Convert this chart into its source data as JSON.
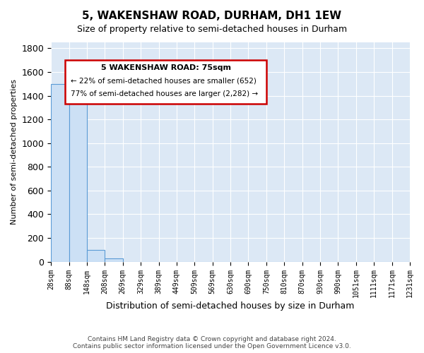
{
  "title": "5, WAKENSHAW ROAD, DURHAM, DH1 1EW",
  "subtitle": "Size of property relative to semi-detached houses in Durham",
  "xlabel": "Distribution of semi-detached houses by size in Durham",
  "ylabel": "Number of semi-detached properties",
  "bin_labels": [
    "28sqm",
    "88sqm",
    "148sqm",
    "208sqm",
    "269sqm",
    "329sqm",
    "389sqm",
    "449sqm",
    "509sqm",
    "569sqm",
    "630sqm",
    "690sqm",
    "750sqm",
    "810sqm",
    "870sqm",
    "930sqm",
    "990sqm",
    "1051sqm",
    "1111sqm",
    "1171sqm",
    "1231sqm"
  ],
  "bar_heights": [
    1500,
    1370,
    100,
    30,
    0,
    0,
    0,
    0,
    0,
    0,
    0,
    0,
    0,
    0,
    0,
    0,
    0,
    0,
    0,
    0
  ],
  "bar_color": "#cce0f5",
  "bar_edge_color": "#5b9bd5",
  "annotation_text_line1": "5 WAKENSHAW ROAD: 75sqm",
  "annotation_text_line2": "← 22% of semi-detached houses are smaller (652)",
  "annotation_text_line3": "77% of semi-detached houses are larger (2,282) →",
  "box_color": "#ffffff",
  "box_edge_color": "#cc0000",
  "footer_line1": "Contains HM Land Registry data © Crown copyright and database right 2024.",
  "footer_line2": "Contains public sector information licensed under the Open Government Licence v3.0.",
  "ylim": [
    0,
    1850
  ],
  "yticks": [
    0,
    200,
    400,
    600,
    800,
    1000,
    1200,
    1400,
    1600,
    1800
  ],
  "plot_background": "#dce8f5"
}
